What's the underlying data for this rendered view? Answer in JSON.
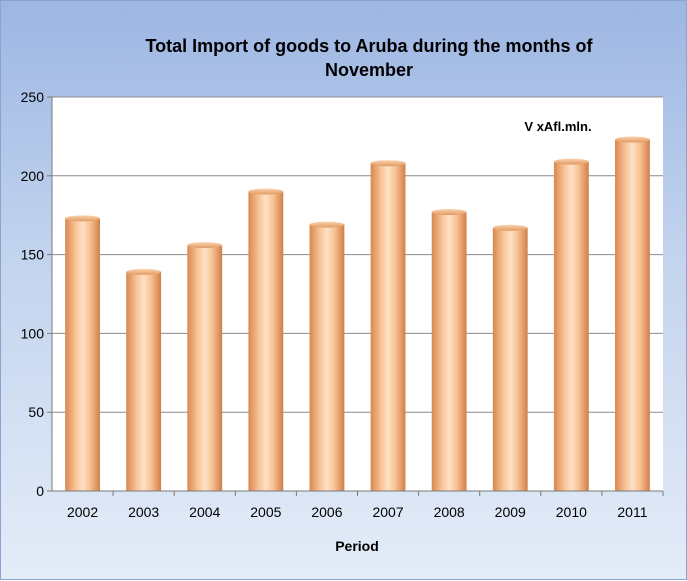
{
  "chart_data": {
    "type": "bar",
    "title_line1": "Total Import of goods to Aruba during the months of",
    "title_line2": "November",
    "unit_label": "V xAfl.mln.",
    "xlabel": "Period",
    "ylabel": "",
    "categories": [
      "2002",
      "2003",
      "2004",
      "2005",
      "2006",
      "2007",
      "2008",
      "2009",
      "2010",
      "2011"
    ],
    "values": [
      173,
      139,
      156,
      190,
      169,
      208,
      177,
      167,
      209,
      223
    ],
    "ylim": [
      0,
      250
    ],
    "yticks": [
      0,
      50,
      100,
      150,
      200,
      250
    ],
    "grid": true,
    "legend": "none",
    "colors": {
      "bar_light": "#fde1c6",
      "bar_mid": "#f6b07a",
      "bar_dark": "#d98750",
      "plot_bg": "#ffffff",
      "grid": "#8c8c8c"
    }
  }
}
